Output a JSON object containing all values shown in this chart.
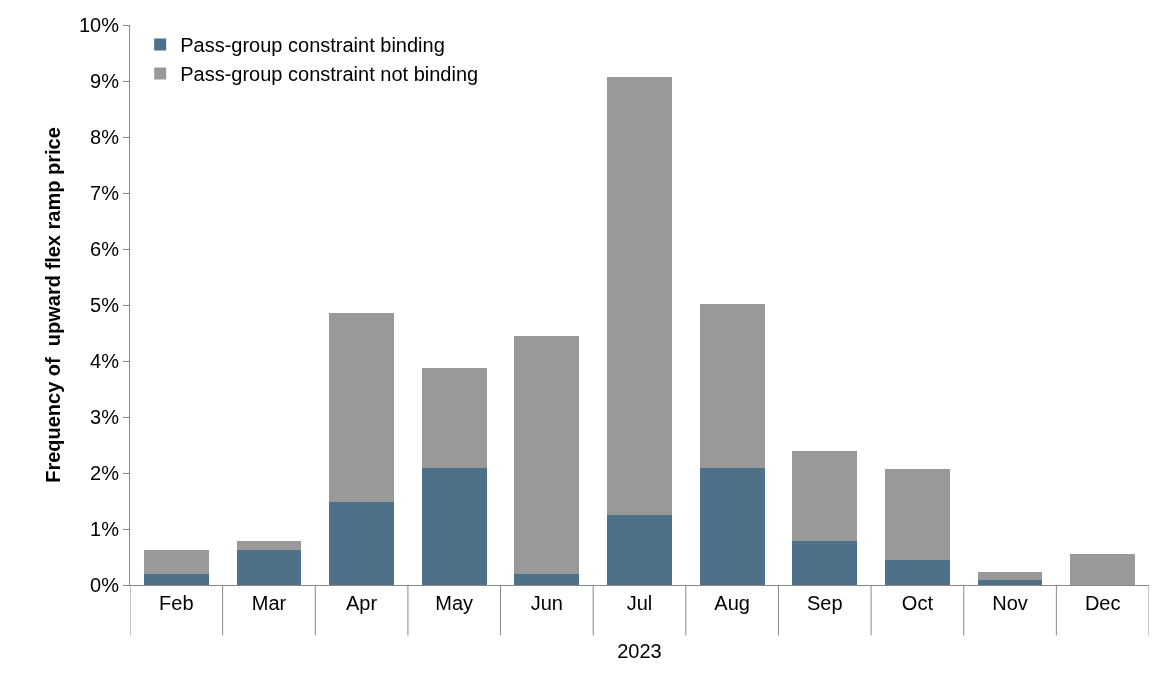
{
  "chart_data": {
    "type": "bar",
    "stacked": true,
    "categories": [
      "Feb",
      "Mar",
      "Apr",
      "May",
      "Jun",
      "Jul",
      "Aug",
      "Sep",
      "Oct",
      "Nov",
      "Dec"
    ],
    "series": [
      {
        "name": "Pass-group constraint binding",
        "color": "#4d7189",
        "values": [
          0.2,
          0.62,
          1.49,
          2.09,
          0.2,
          1.25,
          2.09,
          0.78,
          0.44,
          0.09,
          0
        ]
      },
      {
        "name": "Pass-group constraint not binding",
        "color": "#999999",
        "values": [
          0.42,
          0.16,
          3.36,
          1.78,
          4.25,
          7.82,
          2.92,
          1.62,
          1.63,
          0.15,
          0.56
        ]
      }
    ],
    "ylabel": "Frequency of  upward flex ramp price",
    "xlabel": "2023",
    "ylim": [
      0,
      10
    ],
    "yticks": [
      {
        "value": 0,
        "label": "0%"
      },
      {
        "value": 1,
        "label": "1%"
      },
      {
        "value": 2,
        "label": "2%"
      },
      {
        "value": 3,
        "label": "3%"
      },
      {
        "value": 4,
        "label": "4%"
      },
      {
        "value": 5,
        "label": "5%"
      },
      {
        "value": 6,
        "label": "6%"
      },
      {
        "value": 7,
        "label": "7%"
      },
      {
        "value": 8,
        "label": "8%"
      },
      {
        "value": 9,
        "label": "9%"
      },
      {
        "value": 10,
        "label": "10%"
      }
    ],
    "legend": "top left"
  }
}
